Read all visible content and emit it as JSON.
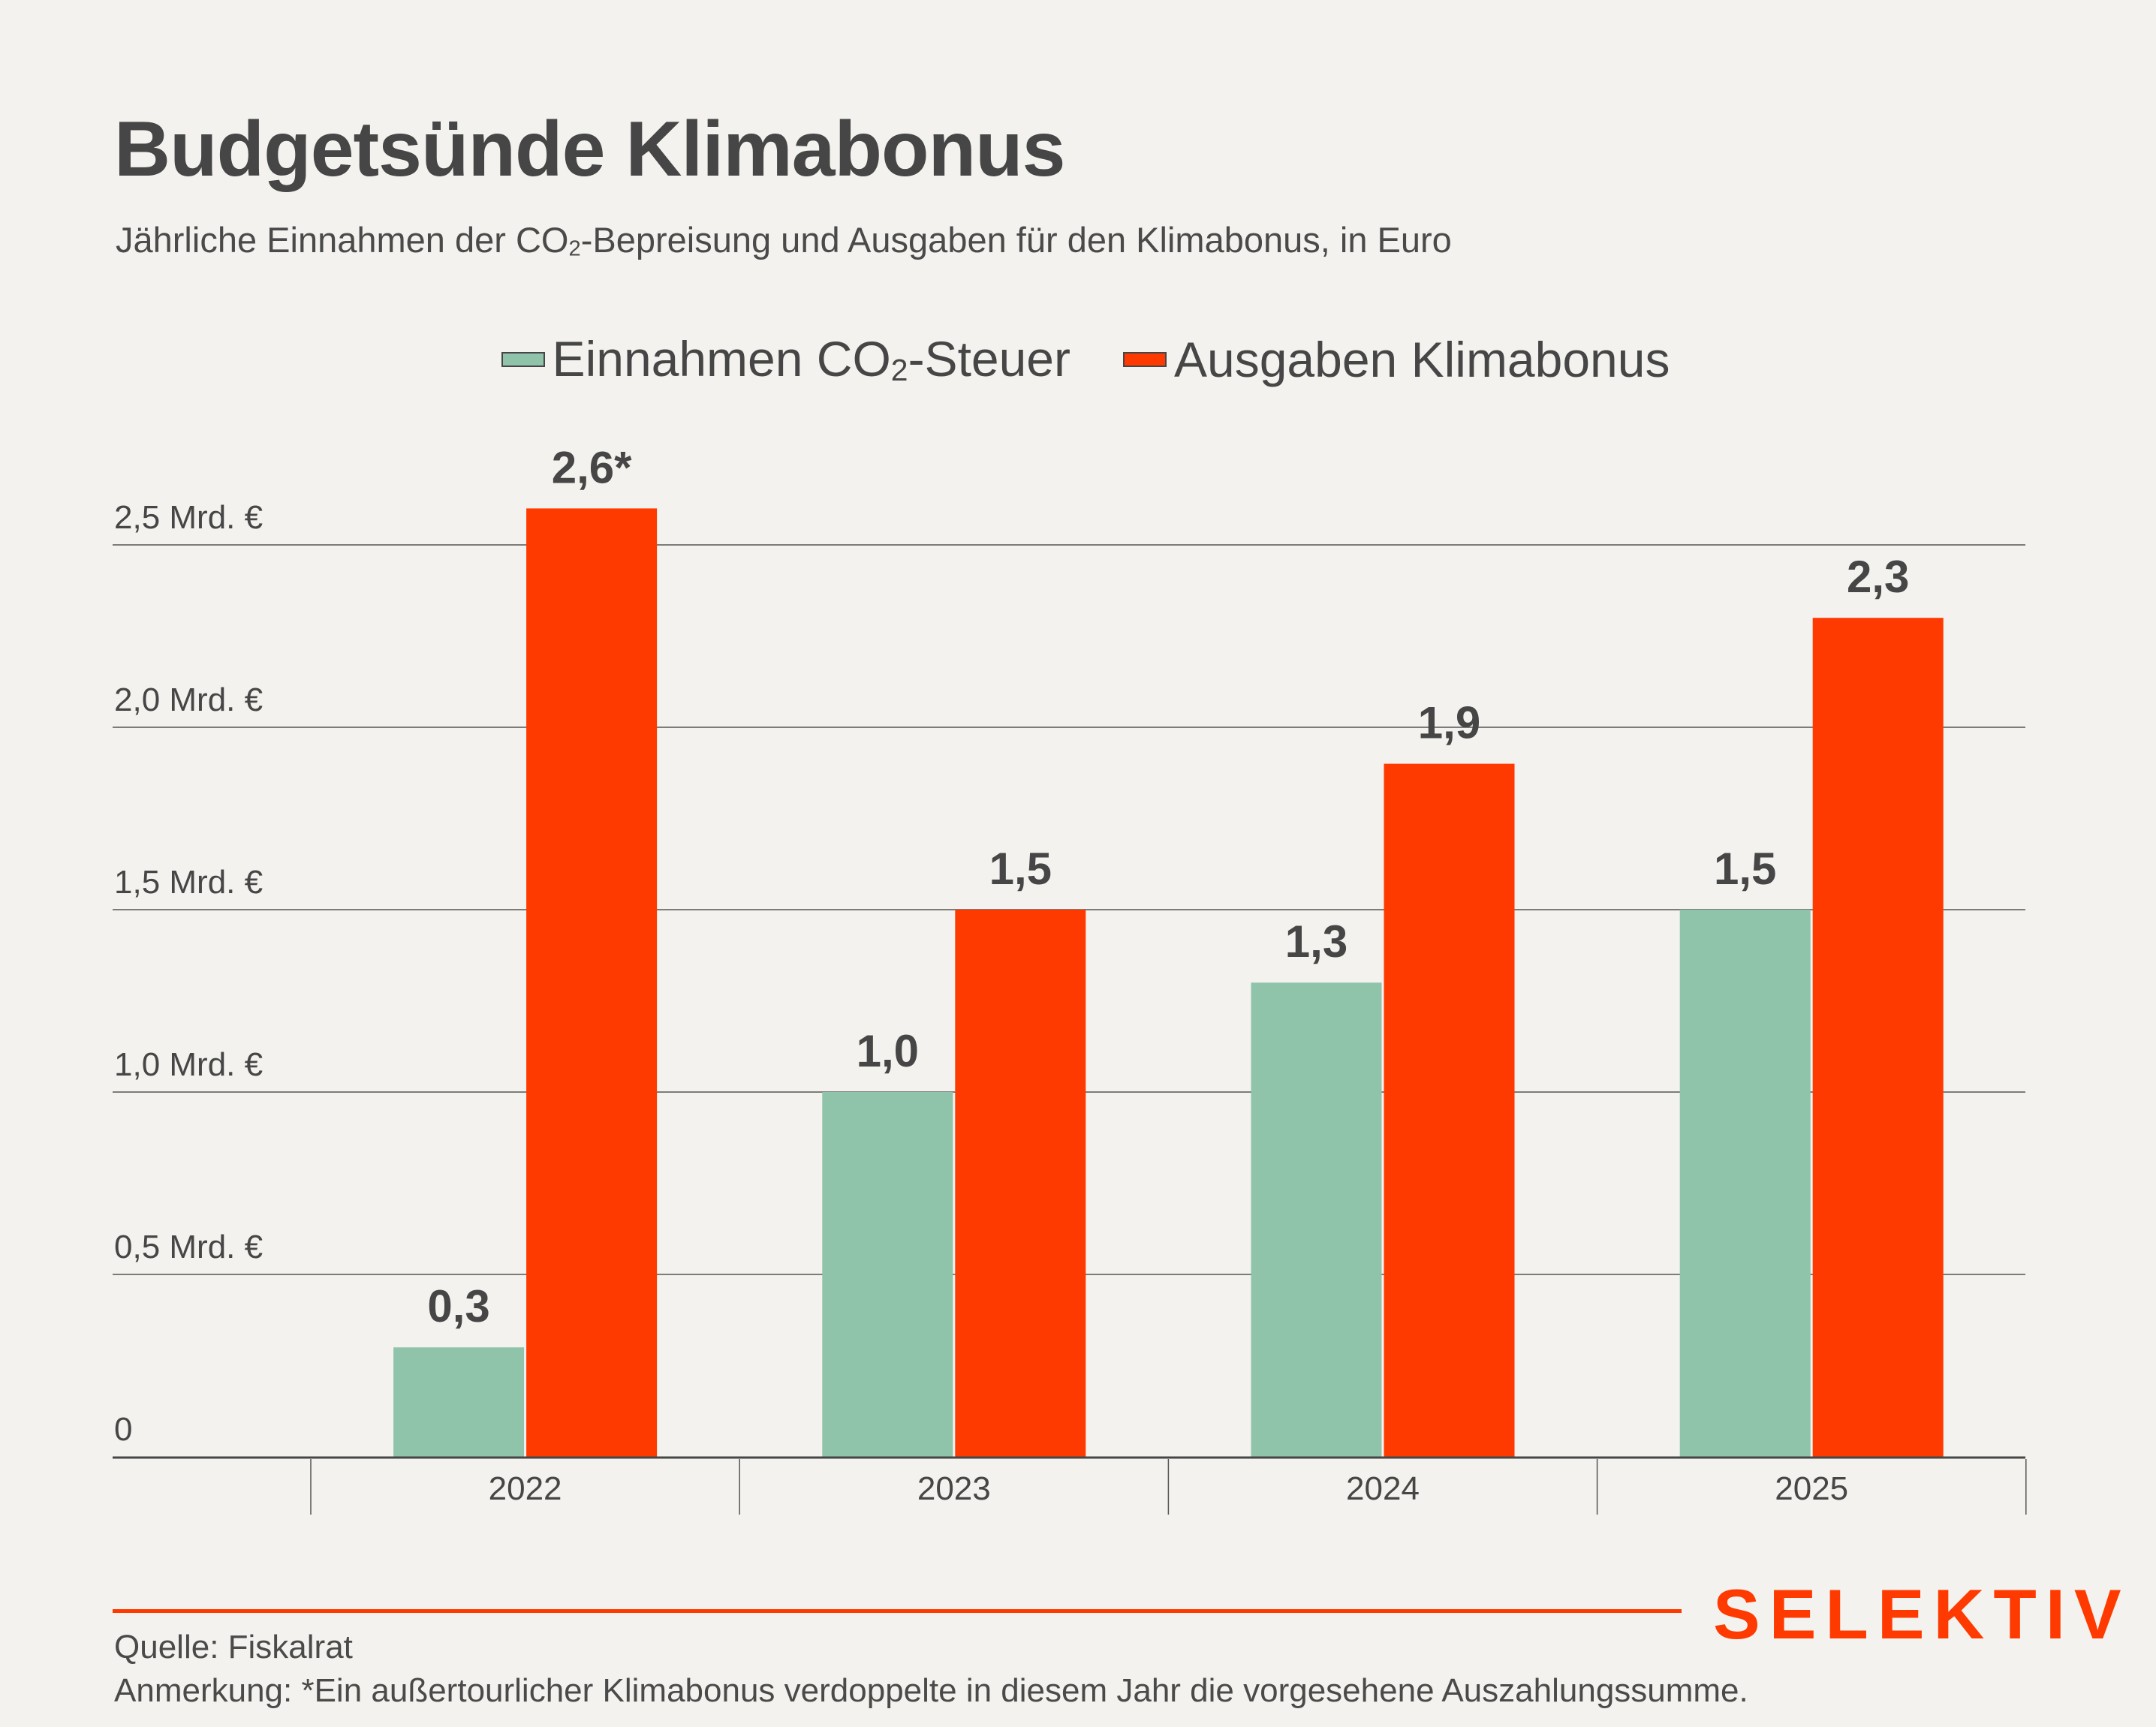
{
  "header": {
    "title": "Budgetsünde Klimabonus",
    "subtitle_pre": "Jährliche Einnahmen der CO",
    "subtitle_sub": "2",
    "subtitle_post": "-Bepreisung und Ausgaben für den Klimabonus, in Euro"
  },
  "legend": [
    {
      "pre": "Einnahmen CO",
      "sub": "2",
      "post": "-Steuer",
      "color": "#8fc4aa"
    },
    {
      "pre": "Ausgaben Klimabonus",
      "sub": "",
      "post": "",
      "color": "#ff3a00"
    }
  ],
  "chart_data": {
    "type": "bar",
    "title": "Budgetsünde Klimabonus",
    "subtitle": "Jährliche Einnahmen der CO2-Bepreisung und Ausgaben für den Klimabonus, in Euro",
    "xlabel": "",
    "ylabel": "",
    "categories": [
      "2022",
      "2023",
      "2024",
      "2025"
    ],
    "series": [
      {
        "name": "Einnahmen CO2-Steuer",
        "color": "#8fc4aa",
        "values": [
          0.3,
          1.0,
          1.3,
          1.5
        ],
        "labels": [
          "0,3",
          "1,0",
          "1,3",
          "1,5"
        ]
      },
      {
        "name": "Ausgaben Klimabonus",
        "color": "#ff3a00",
        "values": [
          2.6,
          1.5,
          1.9,
          2.3
        ],
        "labels": [
          "2,6*",
          "1,5",
          "1,9",
          "2,3"
        ]
      }
    ],
    "ylim": [
      0,
      2.5
    ],
    "yticks": [
      0,
      0.5,
      1.0,
      1.5,
      2.0,
      2.5
    ],
    "ytick_labels": [
      "0",
      "0,5 Mrd. €",
      "1,0 Mrd. €",
      "1,5 Mrd. €",
      "2,0 Mrd. €",
      "2,5 Mrd. €"
    ],
    "grid": true,
    "legend_position": "top-center",
    "unit": "Mrd. €"
  },
  "footer": {
    "brand": "SELEKTIV",
    "source": "Quelle: Fiskalrat",
    "note": "Anmerkung: *Ein außertourlicher Klimabonus verdoppelte in diesem Jahr die vorgesehene Auszahlungssumme."
  }
}
